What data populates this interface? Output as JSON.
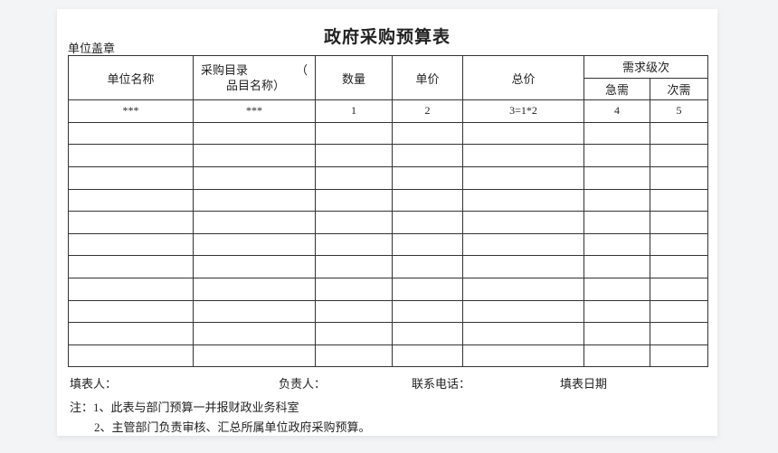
{
  "title": "政府采购预算表",
  "stamp_label": "单位盖章",
  "table": {
    "headers": {
      "unit_name": "单位名称",
      "catalog_line1": "采购目录",
      "catalog_paren": "（",
      "catalog_line2": "品目名称）",
      "quantity": "数量",
      "unit_price": "单价",
      "total_price": "总价",
      "demand_level": "需求级次",
      "urgent": "急需",
      "secondary": "次需"
    },
    "code_row": [
      "***",
      "***",
      "1",
      "2",
      "3=1*2",
      "4",
      "5"
    ],
    "empty_rows": 11
  },
  "signatures": {
    "filler": "填表人：",
    "responsible": "负责人：",
    "phone": "联系电话：",
    "date": "填表日期"
  },
  "notes": [
    "注：1、此表与部门预算一并报财政业务科室",
    "2、主管部门负责审核、汇总所属单位政府采购预算。"
  ]
}
